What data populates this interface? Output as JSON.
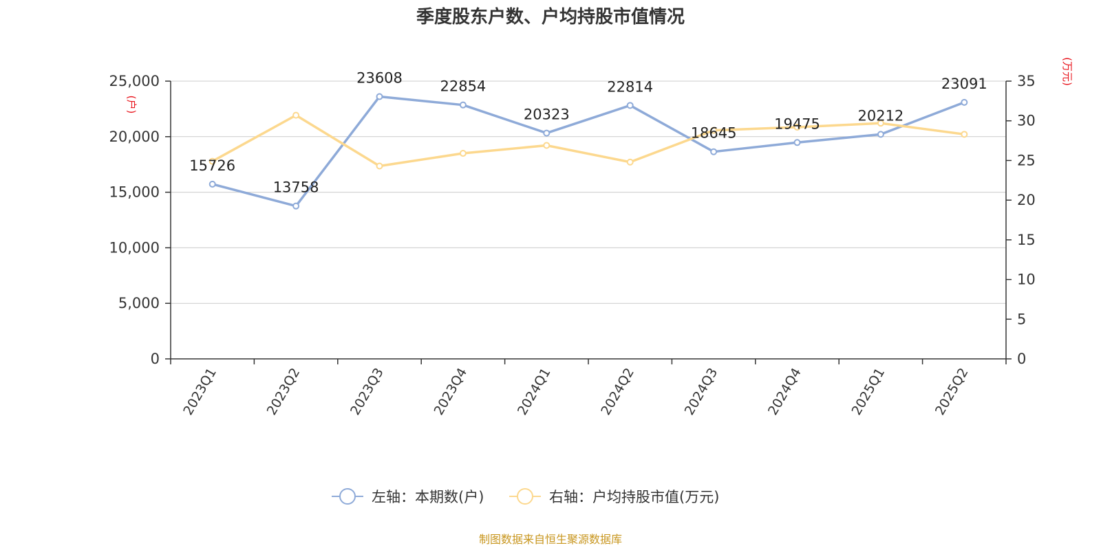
{
  "title": "季度股东户数、户均持股市值情况",
  "source": "制图数据来自恒生聚源数据库",
  "chart_data": {
    "type": "line",
    "title": "季度股东户数、户均持股市值情况",
    "categories": [
      "2023Q1",
      "2023Q2",
      "2023Q3",
      "2023Q4",
      "2024Q1",
      "2024Q2",
      "2024Q3",
      "2024Q4",
      "2025Q1",
      "2025Q2"
    ],
    "left_axis": {
      "unit_label": "(户)",
      "ylim": [
        0,
        25000
      ],
      "ticks": [
        0,
        5000,
        10000,
        15000,
        20000,
        25000
      ],
      "tick_labels": [
        "0",
        "5,000",
        "10,000",
        "15,000",
        "20,000",
        "25,000"
      ]
    },
    "right_axis": {
      "unit_label": "(万元)",
      "ylim": [
        0,
        35
      ],
      "ticks": [
        0,
        5,
        10,
        15,
        20,
        25,
        30,
        35
      ],
      "tick_labels": [
        "0",
        "5",
        "10",
        "15",
        "20",
        "25",
        "30",
        "35"
      ]
    },
    "grid": true,
    "legend_position": "bottom-center",
    "series": [
      {
        "name": "左轴：本期数(户)",
        "axis": "left",
        "color": "#8eaad8",
        "values": [
          15726,
          13758,
          23608,
          22854,
          20323,
          22814,
          18645,
          19475,
          20212,
          23091
        ],
        "labels": [
          "15726",
          "13758",
          "23608",
          "22854",
          "20323",
          "22814",
          "18645",
          "19475",
          "20212",
          "23091"
        ]
      },
      {
        "name": "右轴：户均持股市值(万元)",
        "axis": "right",
        "color": "#fcd88e",
        "values": [
          24.9,
          30.7,
          24.3,
          25.9,
          26.9,
          24.8,
          28.8,
          29.2,
          29.7,
          28.3
        ]
      }
    ]
  }
}
